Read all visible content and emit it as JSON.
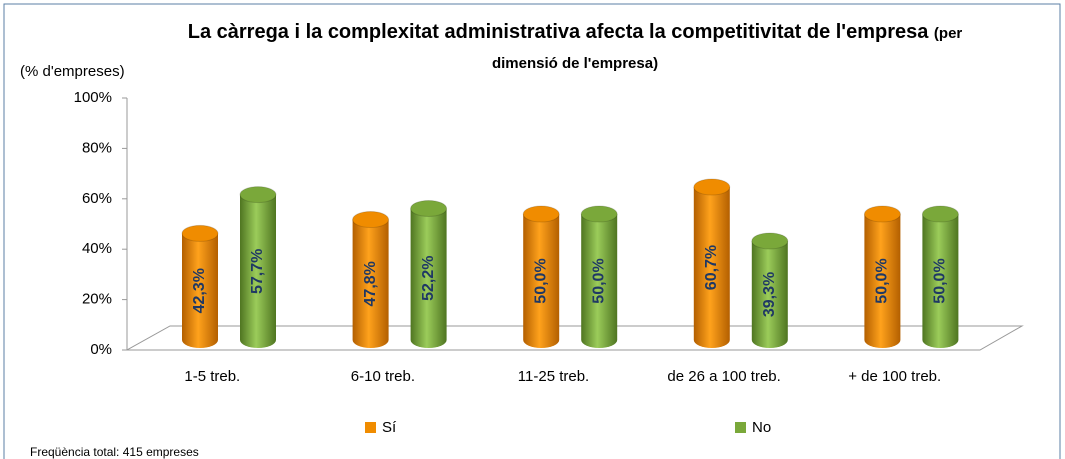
{
  "chart_data": {
    "type": "cylinder-bar",
    "title": "La càrrega i la complexitat administrativa afecta la competitivitat de l'empresa",
    "subtitle": "(per dimensió de l'empresa)",
    "y_axis_label": "(% d'empreses)",
    "footnote": "Freqüència total: 415 empreses",
    "categories": [
      "1-5 treb.",
      "6-10 treb.",
      "11-25 treb.",
      "de 26 a 100 treb.",
      "+ de 100 treb."
    ],
    "series": [
      {
        "name": "Sí",
        "color": "#f08c00",
        "values": [
          42.3,
          47.8,
          50.0,
          60.7,
          50.0
        ],
        "value_labels": [
          "42,3%",
          "47,8%",
          "50,0%",
          "60,7%",
          "50,0%"
        ]
      },
      {
        "name": "No",
        "color": "#7aa83a",
        "values": [
          57.7,
          52.2,
          50.0,
          39.3,
          50.0
        ],
        "value_labels": [
          "57,7%",
          "52,2%",
          "50,0%",
          "39,3%",
          "50,0%"
        ]
      }
    ],
    "ylim": [
      0,
      100
    ],
    "yticks": [
      {
        "value": 0,
        "label": "0%"
      },
      {
        "value": 20,
        "label": "20%"
      },
      {
        "value": 40,
        "label": "40%"
      },
      {
        "value": 60,
        "label": "60%"
      },
      {
        "value": 80,
        "label": "80%"
      },
      {
        "value": 100,
        "label": "100%"
      }
    ],
    "legend": "bottom"
  }
}
